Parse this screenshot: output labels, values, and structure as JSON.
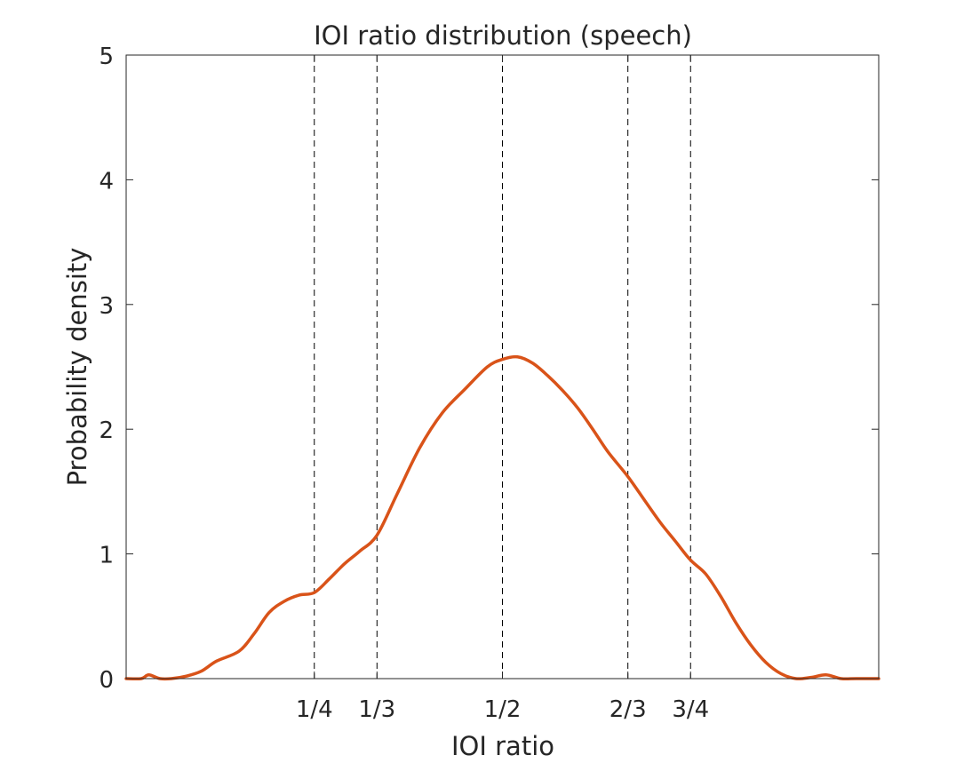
{
  "chart_data": {
    "type": "line",
    "title": "IOI ratio distribution (speech)",
    "xlabel": "IOI ratio",
    "ylabel": "Probability density",
    "xlim": [
      0,
      1
    ],
    "ylim": [
      0,
      5
    ],
    "yticks": [
      0,
      1,
      2,
      3,
      4,
      5
    ],
    "xticks": [
      {
        "value": 0.25,
        "label": "1/4"
      },
      {
        "value": 0.3333,
        "label": "1/3"
      },
      {
        "value": 0.5,
        "label": "1/2"
      },
      {
        "value": 0.6667,
        "label": "2/3"
      },
      {
        "value": 0.75,
        "label": "3/4"
      }
    ],
    "reference_lines_x": [
      0.25,
      0.3333,
      0.5,
      0.6667,
      0.75
    ],
    "grid": false,
    "series": [
      {
        "color": "#D95319",
        "x": [
          0.0,
          0.02,
          0.03,
          0.045,
          0.06,
          0.08,
          0.1,
          0.12,
          0.15,
          0.17,
          0.19,
          0.21,
          0.23,
          0.25,
          0.27,
          0.29,
          0.31,
          0.3333,
          0.36,
          0.39,
          0.42,
          0.45,
          0.48,
          0.5,
          0.52,
          0.54,
          0.56,
          0.58,
          0.6,
          0.62,
          0.64,
          0.6667,
          0.69,
          0.71,
          0.73,
          0.75,
          0.77,
          0.79,
          0.81,
          0.83,
          0.85,
          0.87,
          0.89,
          0.91,
          0.93,
          0.95,
          0.97,
          1.0
        ],
        "y": [
          0.0,
          0.0,
          0.03,
          0.0,
          0.0,
          0.02,
          0.06,
          0.14,
          0.22,
          0.36,
          0.53,
          0.62,
          0.67,
          0.69,
          0.8,
          0.92,
          1.02,
          1.15,
          1.48,
          1.85,
          2.13,
          2.32,
          2.5,
          2.56,
          2.58,
          2.53,
          2.43,
          2.31,
          2.17,
          2.0,
          1.82,
          1.62,
          1.42,
          1.25,
          1.1,
          0.95,
          0.84,
          0.66,
          0.45,
          0.27,
          0.13,
          0.04,
          0.0,
          0.01,
          0.03,
          0.0,
          0.0,
          0.0
        ]
      }
    ]
  }
}
